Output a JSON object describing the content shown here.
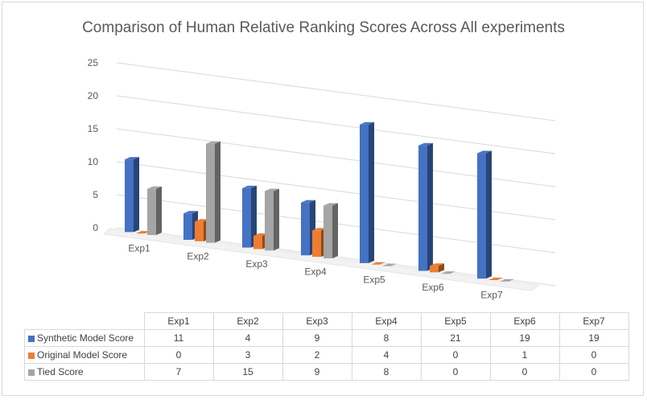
{
  "chart_data": {
    "type": "bar",
    "title": "Comparison of Human Relative Ranking Scores Across All experiments",
    "categories": [
      "Exp1",
      "Exp2",
      "Exp3",
      "Exp4",
      "Exp5",
      "Exp6",
      "Exp7"
    ],
    "series": [
      {
        "name": "Synthetic Model Score",
        "color": "#4472c4",
        "values": [
          11,
          4,
          9,
          8,
          21,
          19,
          19
        ]
      },
      {
        "name": "Original Model Score",
        "color": "#ed7d31",
        "values": [
          0,
          3,
          2,
          4,
          0,
          1,
          0
        ]
      },
      {
        "name": "Tied Score",
        "color": "#a5a5a5",
        "values": [
          7,
          15,
          9,
          8,
          0,
          0,
          0
        ]
      }
    ],
    "y_ticks": [
      "0",
      "5",
      "10",
      "15",
      "20",
      "25"
    ],
    "ylim": [
      0,
      25
    ],
    "grid": true,
    "legend": "data table below chart",
    "style": "3-D clustered column"
  }
}
